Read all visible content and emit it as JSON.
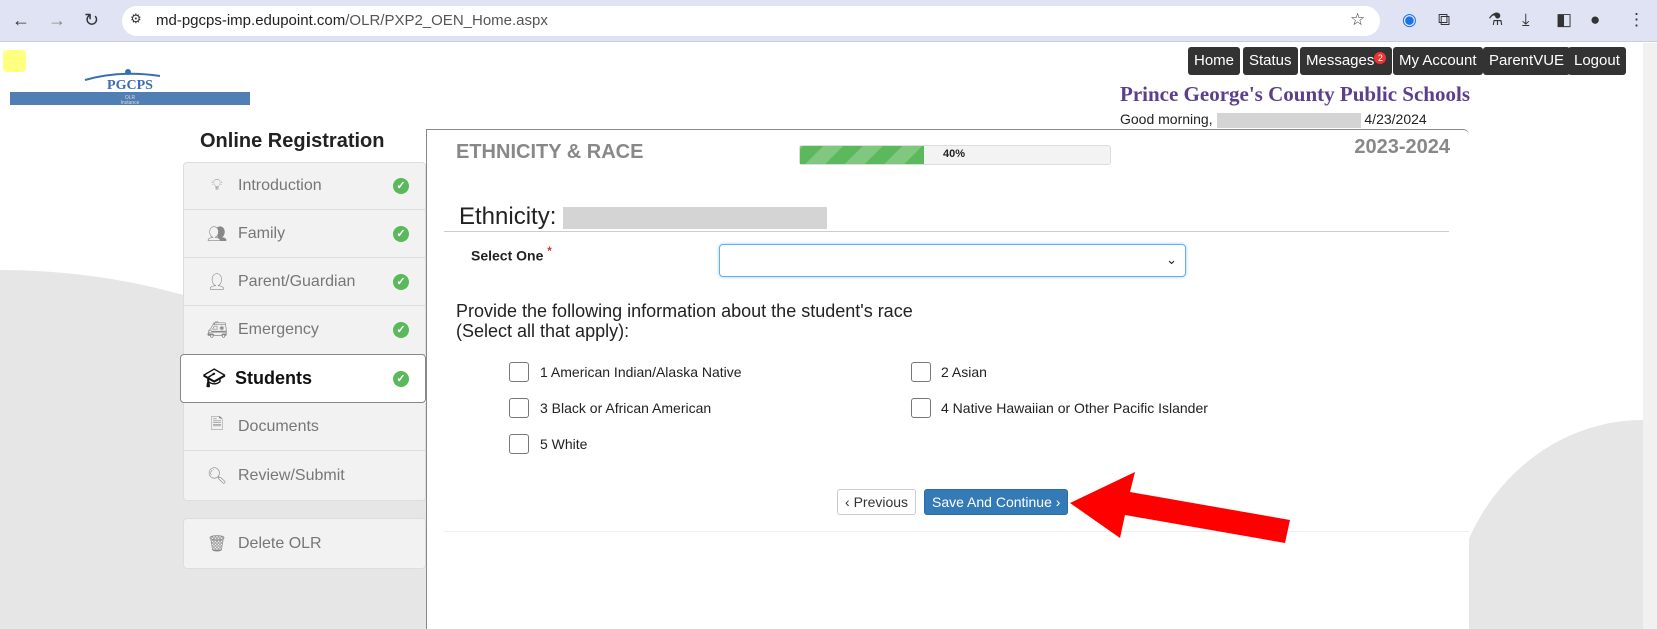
{
  "browser": {
    "url_host": "md-pgcps-imp.edupoint.com",
    "url_path": "/OLR/PXP2_OEN_Home.aspx"
  },
  "logo": {
    "text": "PGCPS",
    "sub": "OLR Instance"
  },
  "topnav": [
    {
      "label": "Home"
    },
    {
      "label": "Status"
    },
    {
      "label": "Messages",
      "badge": "2"
    },
    {
      "label": "My Account"
    },
    {
      "label": "ParentVUE"
    },
    {
      "label": "Logout"
    }
  ],
  "header": {
    "school": "Prince George's County Public Schools",
    "greeting": "Good morning,",
    "date": "4/23/2024"
  },
  "sidebar": {
    "title": "Online Registration",
    "items": [
      {
        "label": "Introduction",
        "icon": "lightbulb-icon",
        "complete": true
      },
      {
        "label": "Family",
        "icon": "users-icon",
        "complete": true
      },
      {
        "label": "Parent/Guardian",
        "icon": "user-icon",
        "complete": true
      },
      {
        "label": "Emergency",
        "icon": "ambulance-icon",
        "complete": true
      },
      {
        "label": "Students",
        "icon": "graduation-cap-icon",
        "complete": true,
        "active": true
      },
      {
        "label": "Documents",
        "icon": "file-icon"
      },
      {
        "label": "Review/Submit",
        "icon": "search-icon"
      }
    ],
    "delete": {
      "label": "Delete OLR",
      "icon": "trash-icon"
    }
  },
  "main": {
    "heading": "ETHNICITY & RACE",
    "progress": 40,
    "progress_label": "40%",
    "year": "2023-2024",
    "ethnicity_label": "Ethnicity:",
    "select_label": "Select One",
    "required": "*",
    "select_value": "",
    "race_prompt_1": "Provide the following information about the student's race",
    "race_prompt_2": "(Select all that apply):",
    "races": [
      {
        "label": "1 American Indian/Alaska Native",
        "checked": false
      },
      {
        "label": "2 Asian",
        "checked": false
      },
      {
        "label": "3 Black or African American",
        "checked": false
      },
      {
        "label": "4 Native Hawaiian or Other Pacific Islander",
        "checked": false
      },
      {
        "label": "5 White",
        "checked": false
      }
    ],
    "prev_label": "Previous",
    "save_label": "Save And Continue"
  },
  "colors": {
    "accent": "#337ab7",
    "school": "#5b3e8c",
    "success": "#5cb85c",
    "arrow": "#ff0000"
  }
}
